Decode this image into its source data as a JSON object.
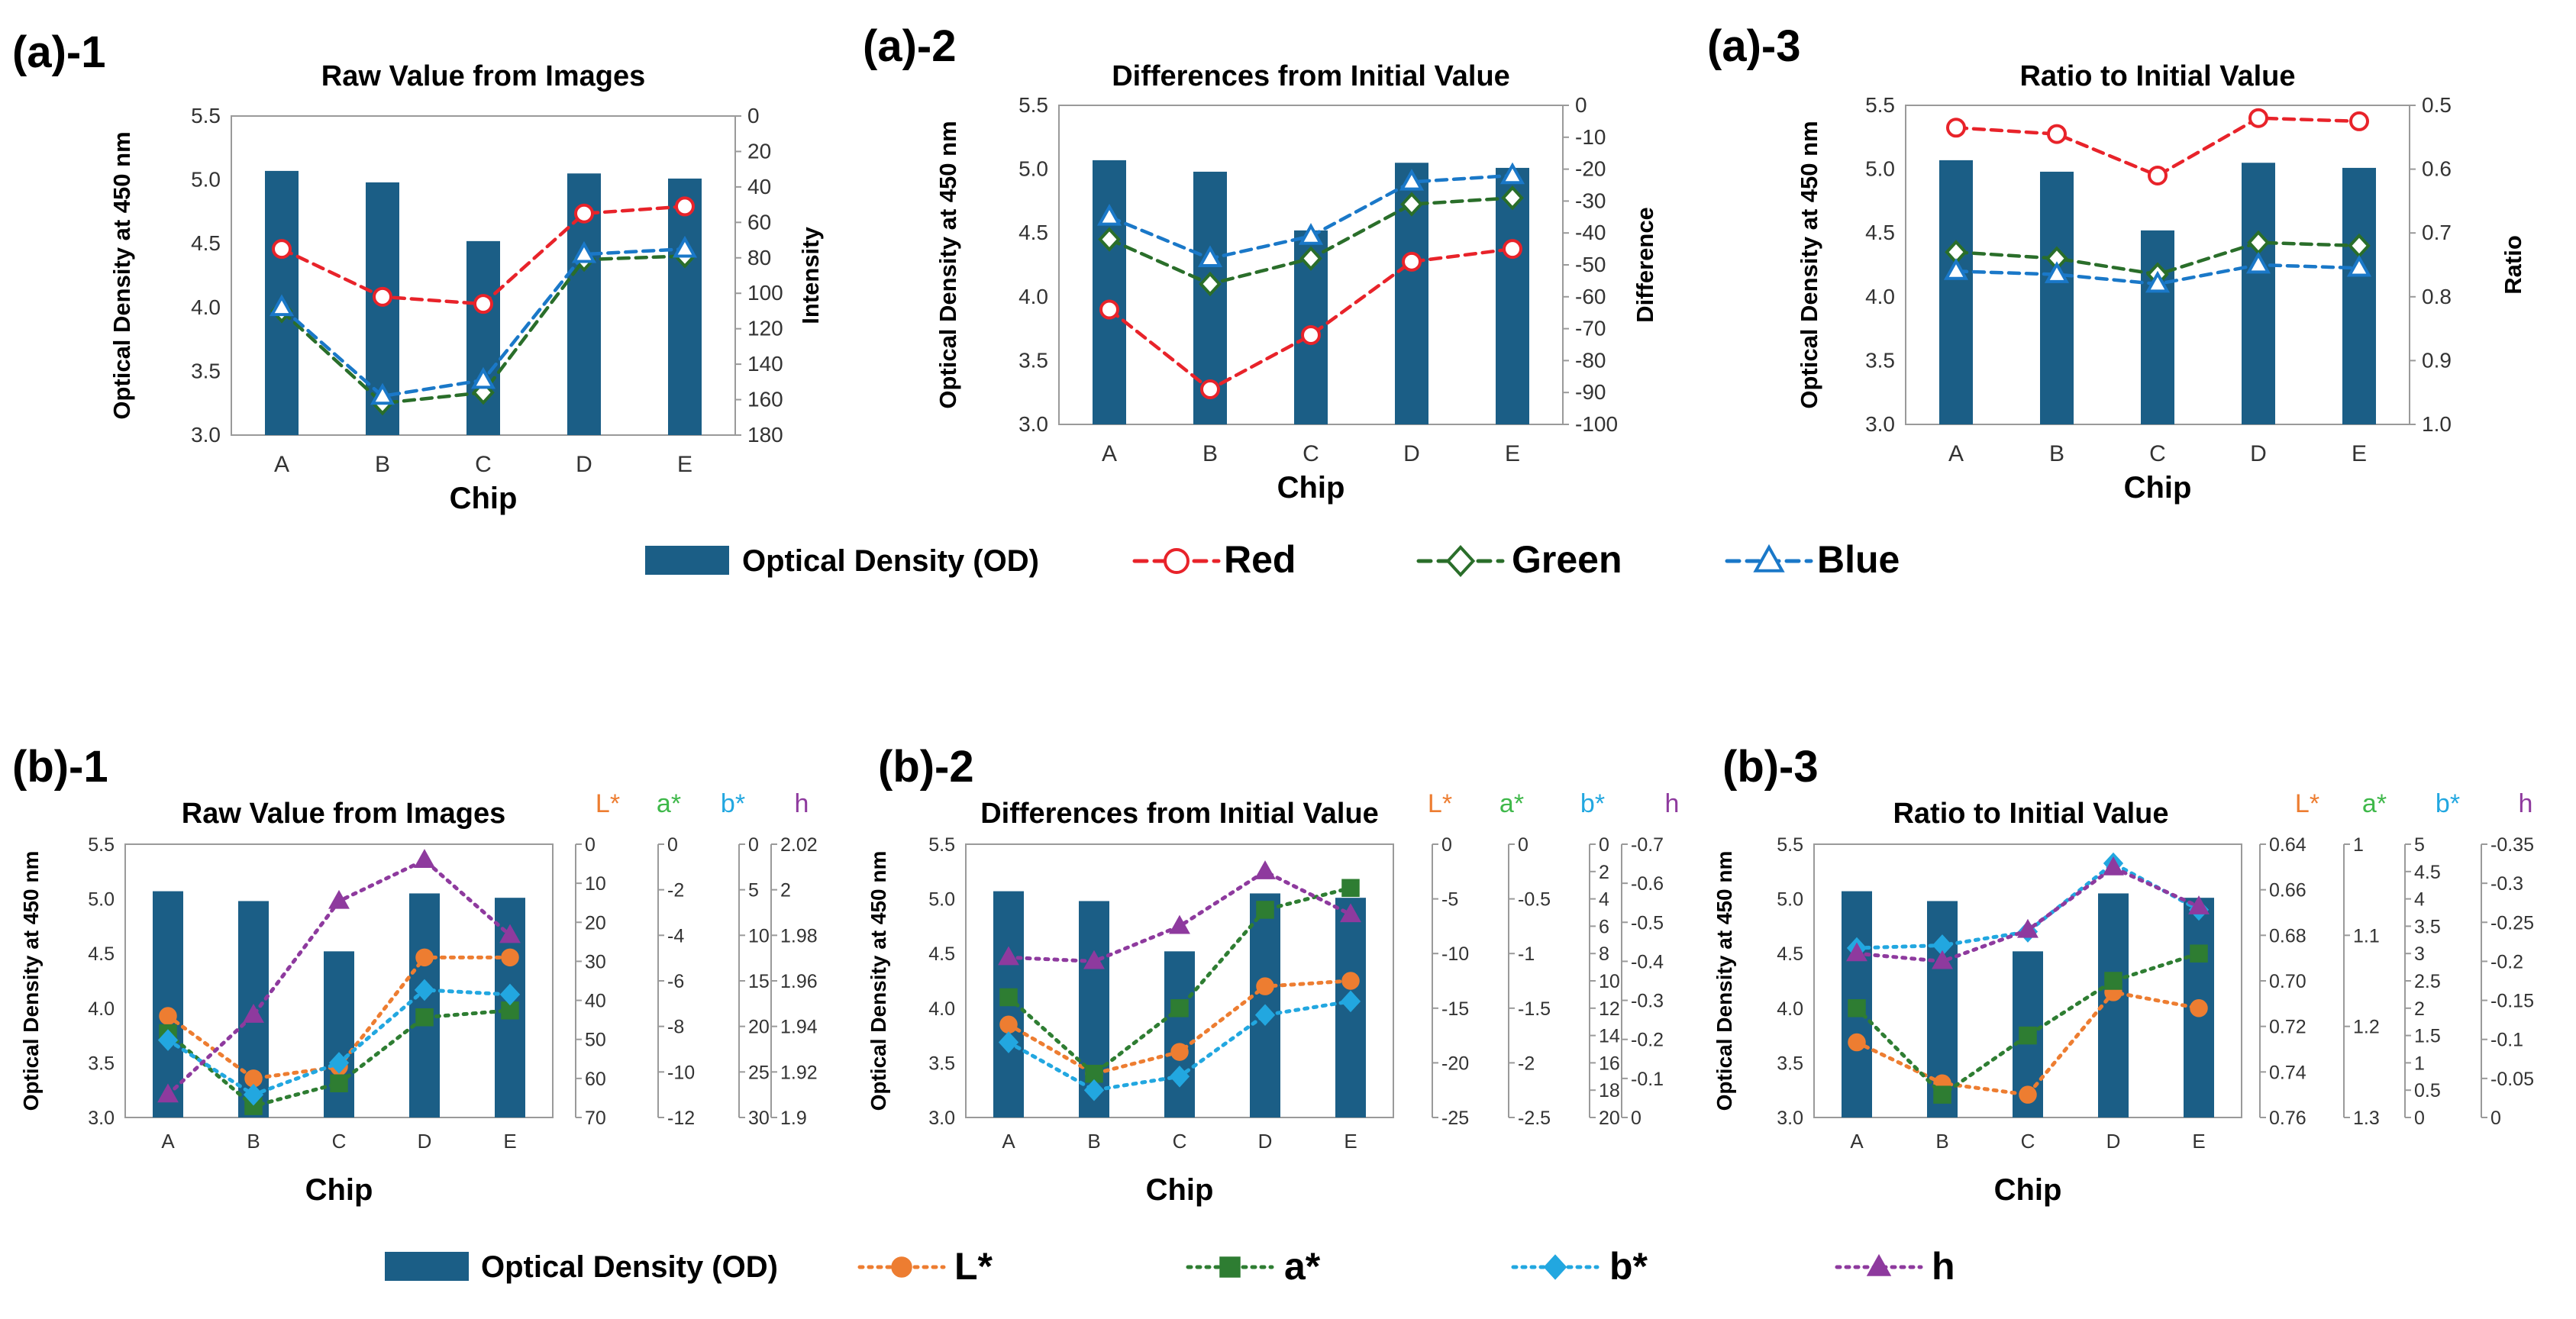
{
  "chart_data": [
    {
      "id": "a1",
      "panel_label": "(a)-1",
      "type": "bar+line",
      "title": "Raw Value from Images",
      "xlabel": "Chip",
      "ylabel": "Optical Density at 450 nm",
      "ylim": [
        3.0,
        5.5
      ],
      "yticks": [
        "3.0",
        "3.5",
        "4.0",
        "4.5",
        "5.0",
        "5.5"
      ],
      "categories": [
        "A",
        "B",
        "C",
        "D",
        "E"
      ],
      "bar": {
        "name": "Optical Density (OD)",
        "values": [
          5.07,
          4.98,
          4.52,
          5.05,
          5.01
        ]
      },
      "right_axes": [
        {
          "label": "Intensity",
          "min": 0,
          "max": 180,
          "inverted": true,
          "ticks": [
            "0",
            "20",
            "40",
            "60",
            "80",
            "100",
            "120",
            "140",
            "160",
            "180"
          ]
        }
      ],
      "series": [
        {
          "name": "Red",
          "axis": 0,
          "values": [
            75,
            102,
            106,
            55,
            51
          ]
        },
        {
          "name": "Green",
          "axis": 0,
          "values": [
            110,
            162,
            156,
            81,
            79
          ]
        },
        {
          "name": "Blue",
          "axis": 0,
          "values": [
            108,
            158,
            149,
            78,
            75
          ]
        }
      ]
    },
    {
      "id": "a2",
      "panel_label": "(a)-2",
      "type": "bar+line",
      "title": "Differences from Initial Value",
      "xlabel": "Chip",
      "ylabel": "Optical Density at 450 nm",
      "ylim": [
        3.0,
        5.5
      ],
      "yticks": [
        "3.0",
        "3.5",
        "4.0",
        "4.5",
        "5.0",
        "5.5"
      ],
      "categories": [
        "A",
        "B",
        "C",
        "D",
        "E"
      ],
      "bar": {
        "name": "Optical Density (OD)",
        "values": [
          5.07,
          4.98,
          4.52,
          5.05,
          5.01
        ]
      },
      "right_axes": [
        {
          "label": "Difference",
          "min": -100,
          "max": 0,
          "inverted": false,
          "ticks": [
            "0",
            "-10",
            "-20",
            "-30",
            "-40",
            "-50",
            "-60",
            "-70",
            "-80",
            "-90",
            "-100"
          ]
        }
      ],
      "series": [
        {
          "name": "Red",
          "axis": 0,
          "values": [
            -64,
            -89,
            -72,
            -49,
            -45
          ]
        },
        {
          "name": "Green",
          "axis": 0,
          "values": [
            -42,
            -56,
            -48,
            -31,
            -29
          ]
        },
        {
          "name": "Blue",
          "axis": 0,
          "values": [
            -35,
            -48,
            -41,
            -24,
            -22
          ]
        }
      ]
    },
    {
      "id": "a3",
      "panel_label": "(a)-3",
      "type": "bar+line",
      "title": "Ratio to Initial Value",
      "xlabel": "Chip",
      "ylabel": "Optical Density at 450 nm",
      "ylim": [
        3.0,
        5.5
      ],
      "yticks": [
        "3.0",
        "3.5",
        "4.0",
        "4.5",
        "5.0",
        "5.5"
      ],
      "categories": [
        "A",
        "B",
        "C",
        "D",
        "E"
      ],
      "bar": {
        "name": "Optical Density (OD)",
        "values": [
          5.07,
          4.98,
          4.52,
          5.05,
          5.01
        ]
      },
      "right_axes": [
        {
          "label": "Ratio",
          "min": 0.5,
          "max": 1.0,
          "inverted": true,
          "ticks": [
            "0.5",
            "0.6",
            "0.7",
            "0.8",
            "0.9",
            "1.0"
          ]
        }
      ],
      "series": [
        {
          "name": "Red",
          "axis": 0,
          "values": [
            0.535,
            0.545,
            0.61,
            0.52,
            0.525
          ]
        },
        {
          "name": "Green",
          "axis": 0,
          "values": [
            0.73,
            0.74,
            0.765,
            0.715,
            0.72
          ]
        },
        {
          "name": "Blue",
          "axis": 0,
          "values": [
            0.76,
            0.765,
            0.78,
            0.75,
            0.755
          ]
        }
      ]
    },
    {
      "id": "b1",
      "panel_label": "(b)-1",
      "type": "bar+line",
      "title": "Raw Value from Images",
      "xlabel": "Chip",
      "ylabel": "Optical Density at 450 nm",
      "ylim": [
        3.0,
        5.5
      ],
      "yticks": [
        "3.0",
        "3.5",
        "4.0",
        "4.5",
        "5.0",
        "5.5"
      ],
      "categories": [
        "A",
        "B",
        "C",
        "D",
        "E"
      ],
      "bar": {
        "name": "Optical Density (OD)",
        "values": [
          5.07,
          4.98,
          4.52,
          5.05,
          5.01
        ]
      },
      "right_axes": [
        {
          "label": "L*",
          "min": 0,
          "max": 70,
          "inverted": true,
          "ticks": [
            "0",
            "10",
            "20",
            "30",
            "40",
            "50",
            "60",
            "70"
          ]
        },
        {
          "label": "a*",
          "min": -12,
          "max": 0,
          "inverted": false,
          "ticks": [
            "0",
            "-2",
            "-4",
            "-6",
            "-8",
            "-10",
            "-12"
          ]
        },
        {
          "label": "b*",
          "min": 0,
          "max": 30,
          "inverted": true,
          "ticks": [
            "0",
            "5",
            "10",
            "15",
            "20",
            "25",
            "30"
          ]
        },
        {
          "label": "h",
          "min": 1.9,
          "max": 2.02,
          "inverted": false,
          "ticks": [
            "2.02",
            "2",
            "1.98",
            "1.96",
            "1.94",
            "1.92",
            "1.9"
          ]
        }
      ],
      "series": [
        {
          "name": "L*",
          "axis": 0,
          "values": [
            44,
            60,
            57,
            29,
            29
          ]
        },
        {
          "name": "a*",
          "axis": 1,
          "values": [
            -8.3,
            -11.5,
            -10.5,
            -7.6,
            -7.3
          ]
        },
        {
          "name": "b*",
          "axis": 2,
          "values": [
            21.5,
            27.5,
            24,
            16,
            16.5
          ]
        },
        {
          "name": "h",
          "axis": 3,
          "values": [
            1.91,
            1.945,
            1.995,
            2.013,
            1.98
          ]
        }
      ]
    },
    {
      "id": "b2",
      "panel_label": "(b)-2",
      "type": "bar+line",
      "title": "Differences from Initial Value",
      "xlabel": "Chip",
      "ylabel": "Optical Density at 450 nm",
      "ylim": [
        3.0,
        5.5
      ],
      "yticks": [
        "3.0",
        "3.5",
        "4.0",
        "4.5",
        "5.0",
        "5.5"
      ],
      "categories": [
        "A",
        "B",
        "C",
        "D",
        "E"
      ],
      "bar": {
        "name": "Optical Density (OD)",
        "values": [
          5.07,
          4.98,
          4.52,
          5.05,
          5.01
        ]
      },
      "right_axes": [
        {
          "label": "L*",
          "min": -25,
          "max": 0,
          "inverted": false,
          "ticks": [
            "0",
            "-5",
            "-10",
            "-15",
            "-20",
            "-25"
          ]
        },
        {
          "label": "a*",
          "min": -2.5,
          "max": 0,
          "inverted": false,
          "ticks": [
            "0",
            "-0.5",
            "-1",
            "-1.5",
            "-2",
            "-2.5"
          ]
        },
        {
          "label": "b*",
          "min": 0,
          "max": 20,
          "inverted": true,
          "ticks": [
            "0",
            "2",
            "4",
            "6",
            "8",
            "10",
            "12",
            "14",
            "16",
            "18",
            "20"
          ]
        },
        {
          "label": "h",
          "min": -0.7,
          "max": 0,
          "inverted": true,
          "ticks": [
            "-0.7",
            "-0.6",
            "-0.5",
            "-0.4",
            "-0.3",
            "-0.2",
            "-0.1",
            "0"
          ]
        }
      ],
      "series": [
        {
          "name": "L*",
          "axis": 0,
          "values": [
            -16.5,
            -21,
            -19,
            -13,
            -12.5
          ]
        },
        {
          "name": "a*",
          "axis": 1,
          "values": [
            -1.4,
            -2.1,
            -1.5,
            -0.6,
            -0.4
          ]
        },
        {
          "name": "b*",
          "axis": 2,
          "values": [
            14.5,
            18,
            17,
            12.5,
            11.5
          ]
        },
        {
          "name": "h",
          "axis": 3,
          "values": [
            -0.41,
            -0.4,
            -0.49,
            -0.63,
            -0.52
          ]
        }
      ]
    },
    {
      "id": "b3",
      "panel_label": "(b)-3",
      "type": "bar+line",
      "title": "Ratio to Initial Value",
      "xlabel": "Chip",
      "ylabel": "Optical Density at 450 nm",
      "ylim": [
        3.0,
        5.5
      ],
      "yticks": [
        "3.0",
        "3.5",
        "4.0",
        "4.5",
        "5.0",
        "5.5"
      ],
      "categories": [
        "A",
        "B",
        "C",
        "D",
        "E"
      ],
      "bar": {
        "name": "Optical Density (OD)",
        "values": [
          5.07,
          4.98,
          4.52,
          5.05,
          5.01
        ]
      },
      "right_axes": [
        {
          "label": "L*",
          "min": 0.64,
          "max": 0.76,
          "inverted": true,
          "ticks": [
            "0.64",
            "0.66",
            "0.68",
            "0.70",
            "0.72",
            "0.74",
            "0.76"
          ]
        },
        {
          "label": "a*",
          "min": 1.0,
          "max": 1.3,
          "inverted": true,
          "ticks": [
            "1",
            "1.1",
            "1.2",
            "1.3"
          ]
        },
        {
          "label": "b*",
          "min": 0,
          "max": 5,
          "inverted": false,
          "ticks": [
            "5",
            "4.5",
            "4",
            "3.5",
            "3",
            "2.5",
            "2",
            "1.5",
            "1",
            "0.5",
            "0"
          ]
        },
        {
          "label": "h",
          "min": -0.35,
          "max": 0,
          "inverted": true,
          "ticks": [
            "-0.35",
            "-0.3",
            "-0.25",
            "-0.2",
            "-0.15",
            "-0.1",
            "-0.05",
            "0"
          ]
        }
      ],
      "series": [
        {
          "name": "L*",
          "axis": 0,
          "values": [
            0.727,
            0.745,
            0.75,
            0.705,
            0.712
          ]
        },
        {
          "name": "a*",
          "axis": 1,
          "values": [
            1.18,
            1.275,
            1.21,
            1.15,
            1.12
          ]
        },
        {
          "name": "b*",
          "axis": 2,
          "values": [
            3.1,
            3.15,
            3.4,
            4.65,
            3.8
          ]
        },
        {
          "name": "h",
          "axis": 3,
          "values": [
            -0.21,
            -0.2,
            -0.24,
            -0.32,
            -0.27
          ]
        }
      ]
    }
  ],
  "legends": {
    "a": [
      "Optical Density (OD)",
      "Red",
      "Green",
      "Blue"
    ],
    "b": [
      "Optical Density (OD)",
      "L*",
      "a*",
      "b*",
      "h"
    ]
  },
  "colors": {
    "bar": "#1b5e86",
    "Red": "#e8232a",
    "Green": "#2a6e2a",
    "Blue": "#1a78c8",
    "L*": "#ed7d31",
    "a*": "#2e7d32",
    "b*": "#22a7e0",
    "h": "#8e3a9e",
    "a*_label": "#3fb84a"
  },
  "markers": {
    "Red": "open-circle",
    "Green": "open-diamond",
    "Blue": "open-triangle",
    "L*": "filled-circle",
    "a*": "filled-square",
    "b*": "filled-diamond",
    "h": "filled-triangle"
  }
}
